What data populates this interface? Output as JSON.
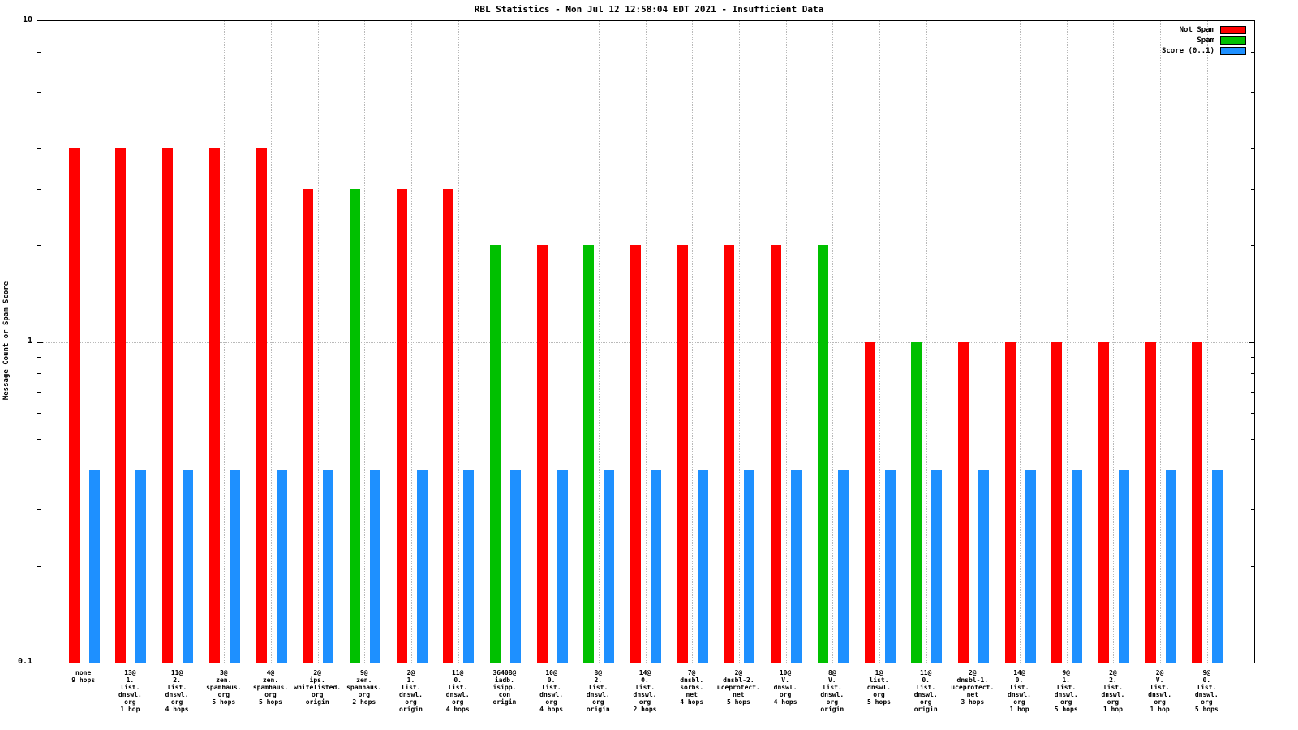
{
  "title": "RBL Statistics - Mon Jul 12 12:58:04 EDT 2021 - Insufficient Data",
  "ylabel": "Message Count or Spam Score",
  "legend": [
    {
      "key": "not_spam",
      "label": "Not Spam",
      "color": "#ff0000"
    },
    {
      "key": "spam",
      "label": "Spam",
      "color": "#00c000"
    },
    {
      "key": "score",
      "label": "Score (0..1)",
      "color": "#1e90ff"
    }
  ],
  "chart_data": {
    "type": "bar",
    "yscale": "log",
    "ylim": [
      0.1,
      10
    ],
    "yticks": [
      "10",
      "1",
      "0.1"
    ],
    "grid": true,
    "legend_position": "top-right",
    "xlabel": "",
    "ylabel": "Message Count or Spam Score",
    "colors": {
      "not_spam": "#ff0000",
      "spam": "#00c000",
      "score": "#1e90ff"
    },
    "categories": [
      {
        "lines": [
          "none",
          "9 hops"
        ],
        "series": "not_spam",
        "count": 4,
        "score": 0.4
      },
      {
        "lines": [
          "13@",
          "1.",
          "list.",
          "dnswl.",
          "org",
          "1 hop"
        ],
        "series": "not_spam",
        "count": 4,
        "score": 0.4
      },
      {
        "lines": [
          "11@",
          "2.",
          "list.",
          "dnswl.",
          "org",
          "4 hops"
        ],
        "series": "not_spam",
        "count": 4,
        "score": 0.4
      },
      {
        "lines": [
          "3@",
          "zen.",
          "spamhaus.",
          "org",
          "5 hops"
        ],
        "series": "not_spam",
        "count": 4,
        "score": 0.4
      },
      {
        "lines": [
          "4@",
          "zen.",
          "spamhaus.",
          "org",
          "5 hops"
        ],
        "series": "not_spam",
        "count": 4,
        "score": 0.4
      },
      {
        "lines": [
          "2@",
          "ips.",
          "whitelisted.",
          "org",
          "origin"
        ],
        "series": "not_spam",
        "count": 3,
        "score": 0.4
      },
      {
        "lines": [
          "9@",
          "zen.",
          "spamhaus.",
          "org",
          "2 hops"
        ],
        "series": "spam",
        "count": 3,
        "score": 0.4
      },
      {
        "lines": [
          "2@",
          "1.",
          "list.",
          "dnswl.",
          "org",
          "origin"
        ],
        "series": "not_spam",
        "count": 3,
        "score": 0.4
      },
      {
        "lines": [
          "11@",
          "0.",
          "list.",
          "dnswl.",
          "org",
          "4 hops"
        ],
        "series": "not_spam",
        "count": 3,
        "score": 0.4
      },
      {
        "lines": [
          "36408@",
          "iadb.",
          "isipp.",
          "con",
          "origin"
        ],
        "series": "spam",
        "count": 2,
        "score": 0.4
      },
      {
        "lines": [
          "10@",
          "0.",
          "list.",
          "dnswl.",
          "org",
          "4 hops"
        ],
        "series": "not_spam",
        "count": 2,
        "score": 0.4
      },
      {
        "lines": [
          "8@",
          "2.",
          "list.",
          "dnswl.",
          "org",
          "origin"
        ],
        "series": "spam",
        "count": 2,
        "score": 0.4
      },
      {
        "lines": [
          "14@",
          "0.",
          "list.",
          "dnswl.",
          "org",
          "2 hops"
        ],
        "series": "not_spam",
        "count": 2,
        "score": 0.4
      },
      {
        "lines": [
          "7@",
          "dnsbl.",
          "sorbs.",
          "net",
          "4 hops"
        ],
        "series": "not_spam",
        "count": 2,
        "score": 0.4
      },
      {
        "lines": [
          "2@",
          "dnsbl-2.",
          "uceprotect.",
          "net",
          "5 hops"
        ],
        "series": "not_spam",
        "count": 2,
        "score": 0.4
      },
      {
        "lines": [
          "10@",
          "V.",
          "dnswl.",
          "org",
          "4 hops"
        ],
        "series": "not_spam",
        "count": 2,
        "score": 0.4
      },
      {
        "lines": [
          "8@",
          "V.",
          "list.",
          "dnswl.",
          "org",
          "origin"
        ],
        "series": "spam",
        "count": 2,
        "score": 0.4
      },
      {
        "lines": [
          "1@",
          "list.",
          "dnswl.",
          "org",
          "5 hops"
        ],
        "series": "not_spam",
        "count": 1,
        "score": 0.4
      },
      {
        "lines": [
          "11@",
          "0.",
          "list.",
          "dnswl.",
          "org",
          "origin"
        ],
        "series": "spam",
        "count": 1,
        "score": 0.4
      },
      {
        "lines": [
          "2@",
          "dnsbl-1.",
          "uceprotect.",
          "net",
          "3 hops"
        ],
        "series": "not_spam",
        "count": 1,
        "score": 0.4
      },
      {
        "lines": [
          "14@",
          "0.",
          "list.",
          "dnswl.",
          "org",
          "1 hop"
        ],
        "series": "not_spam",
        "count": 1,
        "score": 0.4
      },
      {
        "lines": [
          "9@",
          "1.",
          "list.",
          "dnswl.",
          "org",
          "5 hops"
        ],
        "series": "not_spam",
        "count": 1,
        "score": 0.4
      },
      {
        "lines": [
          "2@",
          "2.",
          "list.",
          "dnswl.",
          "org",
          "1 hop"
        ],
        "series": "not_spam",
        "count": 1,
        "score": 0.4
      },
      {
        "lines": [
          "2@",
          "V.",
          "list.",
          "dnswl.",
          "org",
          "1 hop"
        ],
        "series": "not_spam",
        "count": 1,
        "score": 0.4
      },
      {
        "lines": [
          "9@",
          "0.",
          "list.",
          "dnswl.",
          "org",
          "5 hops"
        ],
        "series": "not_spam",
        "count": 1,
        "score": 0.4
      }
    ]
  }
}
